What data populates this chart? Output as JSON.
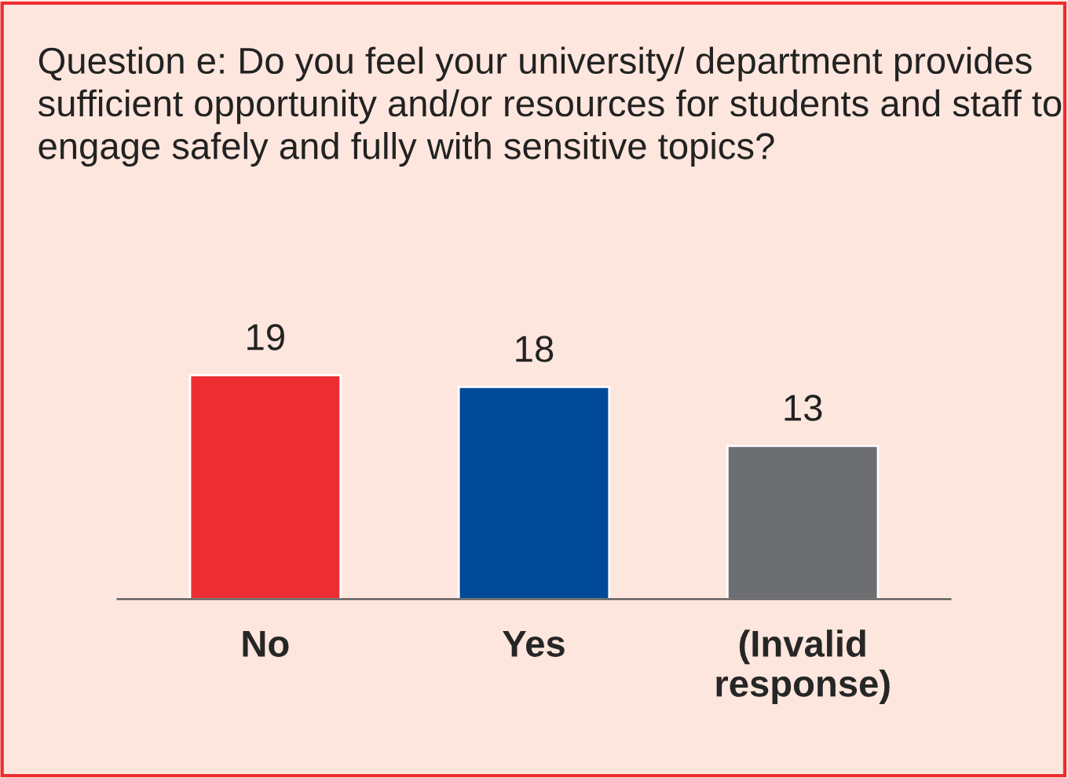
{
  "chart_data": {
    "type": "bar",
    "title": "Question e: Do you feel your university/ department provides sufficient opportunity and/or resources for students and staff to engage safely and fully with sensitive topics?",
    "categories": [
      "No",
      "Yes",
      "(Invalid response)"
    ],
    "values": [
      19,
      18,
      13
    ],
    "colors": [
      "#ee2d32",
      "#004a98",
      "#6d6e71"
    ],
    "data_labels": true,
    "grid": false,
    "legend": false
  }
}
